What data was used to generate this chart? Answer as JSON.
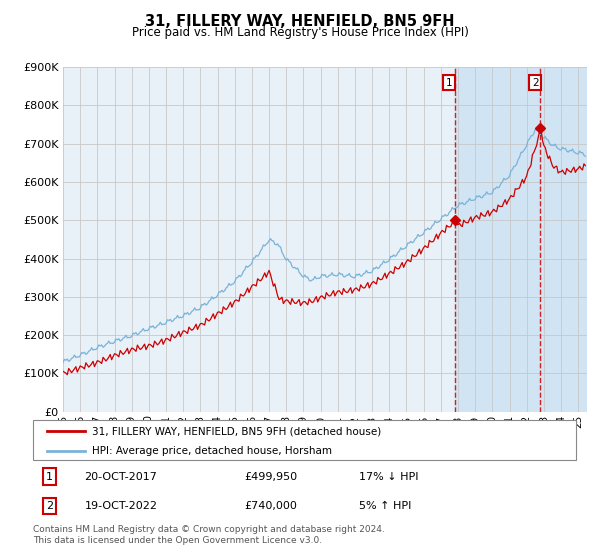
{
  "title": "31, FILLERY WAY, HENFIELD, BN5 9FH",
  "subtitle": "Price paid vs. HM Land Registry's House Price Index (HPI)",
  "legend_line1": "31, FILLERY WAY, HENFIELD, BN5 9FH (detached house)",
  "legend_line2": "HPI: Average price, detached house, Horsham",
  "annotation1_label": "1",
  "annotation1_date": "20-OCT-2017",
  "annotation1_price": "£499,950",
  "annotation1_hpi": "17% ↓ HPI",
  "annotation1_year": 2017.8,
  "annotation1_value": 499950,
  "annotation2_label": "2",
  "annotation2_date": "19-OCT-2022",
  "annotation2_price": "£740,000",
  "annotation2_hpi": "5% ↑ HPI",
  "annotation2_year": 2022.8,
  "annotation2_value": 740000,
  "hpi_color": "#7ab3d8",
  "price_color": "#cc0000",
  "background_plot": "#e8f0f8",
  "background_shaded": "#d0e4f4",
  "grid_color": "#c8c8c8",
  "ylim": [
    0,
    900000
  ],
  "xlim_start": 1995.0,
  "xlim_end": 2025.5,
  "dashed_line_color": "#cc0000",
  "footer": "Contains HM Land Registry data © Crown copyright and database right 2024.\nThis data is licensed under the Open Government Licence v3.0.",
  "x_ticks": [
    1995,
    1996,
    1997,
    1998,
    1999,
    2000,
    2001,
    2002,
    2003,
    2004,
    2005,
    2006,
    2007,
    2008,
    2009,
    2010,
    2011,
    2012,
    2013,
    2014,
    2015,
    2016,
    2017,
    2018,
    2019,
    2020,
    2021,
    2022,
    2023,
    2024,
    2025
  ],
  "yticks": [
    0,
    100000,
    200000,
    300000,
    400000,
    500000,
    600000,
    700000,
    800000,
    900000
  ]
}
